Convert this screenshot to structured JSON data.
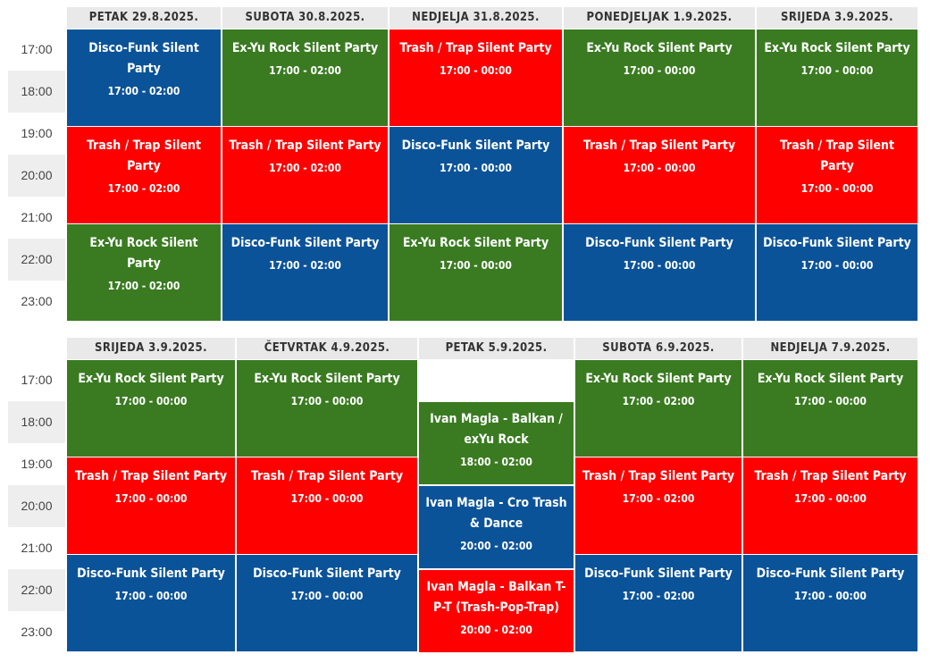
{
  "colors": {
    "blue": "#0b5399",
    "green": "#3a7b21",
    "red": "#ff0000",
    "header_bg": "#e9e9e9"
  },
  "time_labels": [
    "17:00",
    "18:00",
    "19:00",
    "20:00",
    "21:00",
    "22:00",
    "23:00"
  ],
  "schedule_1": {
    "days": [
      {
        "label": "PETAK 29.8.2025.",
        "events": [
          {
            "title": "Disco-Funk Silent Party",
            "time": "17:00 - 02:00",
            "color": "blue"
          },
          {
            "title": "Trash / Trap Silent Party",
            "time": "17:00 - 02:00",
            "color": "red"
          },
          {
            "title": "Ex-Yu Rock Silent Party",
            "time": "17:00 - 02:00",
            "color": "green"
          }
        ]
      },
      {
        "label": "SUBOTA 30.8.2025.",
        "events": [
          {
            "title": "Ex-Yu Rock Silent Party",
            "time": "17:00 - 02:00",
            "color": "green"
          },
          {
            "title": "Trash / Trap Silent Party",
            "time": "17:00 - 02:00",
            "color": "red"
          },
          {
            "title": "Disco-Funk Silent Party",
            "time": "17:00 - 02:00",
            "color": "blue"
          }
        ]
      },
      {
        "label": "NEDJELJA 31.8.2025.",
        "events": [
          {
            "title": "Trash / Trap Silent Party",
            "time": "17:00 - 00:00",
            "color": "red"
          },
          {
            "title": "Disco-Funk Silent Party",
            "time": "17:00 - 00:00",
            "color": "blue"
          },
          {
            "title": "Ex-Yu Rock Silent Party",
            "time": "17:00 - 00:00",
            "color": "green"
          }
        ]
      },
      {
        "label": "PONEDJELJAK 1.9.2025.",
        "events": [
          {
            "title": "Ex-Yu Rock Silent Party",
            "time": "17:00 - 00:00",
            "color": "green"
          },
          {
            "title": "Trash / Trap Silent Party",
            "time": "17:00 - 00:00",
            "color": "red"
          },
          {
            "title": "Disco-Funk Silent Party",
            "time": "17:00 - 00:00",
            "color": "blue"
          }
        ]
      },
      {
        "label": "SRIJEDA 3.9.2025.",
        "events": [
          {
            "title": "Ex-Yu Rock Silent Party",
            "time": "17:00 - 00:00",
            "color": "green"
          },
          {
            "title": "Trash / Trap Silent Party",
            "time": "17:00 - 00:00",
            "color": "red"
          },
          {
            "title": "Disco-Funk Silent Party",
            "time": "17:00 - 00:00",
            "color": "blue"
          }
        ]
      }
    ]
  },
  "schedule_2": {
    "days": [
      {
        "label": "SRIJEDA 3.9.2025.",
        "events": [
          {
            "title": "Ex-Yu Rock Silent Party",
            "time": "17:00 - 00:00",
            "color": "green"
          },
          {
            "title": "Trash / Trap Silent Party",
            "time": "17:00 - 00:00",
            "color": "red"
          },
          {
            "title": "Disco-Funk Silent Party",
            "time": "17:00 - 00:00",
            "color": "blue"
          }
        ]
      },
      {
        "label": "ČETVRTAK 4.9.2025.",
        "events": [
          {
            "title": "Ex-Yu Rock Silent Party",
            "time": "17:00 - 00:00",
            "color": "green"
          },
          {
            "title": "Trash / Trap Silent Party",
            "time": "17:00 - 00:00",
            "color": "red"
          },
          {
            "title": "Disco-Funk Silent Party",
            "time": "17:00 - 00:00",
            "color": "blue"
          }
        ]
      },
      {
        "label": "PETAK 5.9.2025.",
        "events": [
          {
            "title": "Ivan Magla - Balkan / exYu Rock",
            "time": "18:00 - 02:00",
            "color": "green"
          },
          {
            "title": "Ivan Magla - Cro Trash & Dance",
            "time": "20:00 - 02:00",
            "color": "blue"
          },
          {
            "title": "Ivan Magla - Balkan T-P-T (Trash-Pop-Trap)",
            "time": "20:00 - 02:00",
            "color": "red"
          }
        ]
      },
      {
        "label": "SUBOTA 6.9.2025.",
        "events": [
          {
            "title": "Ex-Yu Rock Silent Party",
            "time": "17:00 - 02:00",
            "color": "green"
          },
          {
            "title": "Trash / Trap Silent Party",
            "time": "17:00 - 02:00",
            "color": "red"
          },
          {
            "title": "Disco-Funk Silent Party",
            "time": "17:00 - 02:00",
            "color": "blue"
          }
        ]
      },
      {
        "label": "NEDJELJA 7.9.2025.",
        "events": [
          {
            "title": "Ex-Yu Rock Silent Party",
            "time": "17:00 - 00:00",
            "color": "green"
          },
          {
            "title": "Trash / Trap Silent Party",
            "time": "17:00 - 00:00",
            "color": "red"
          },
          {
            "title": "Disco-Funk Silent Party",
            "time": "17:00 - 00:00",
            "color": "blue"
          }
        ]
      }
    ]
  }
}
